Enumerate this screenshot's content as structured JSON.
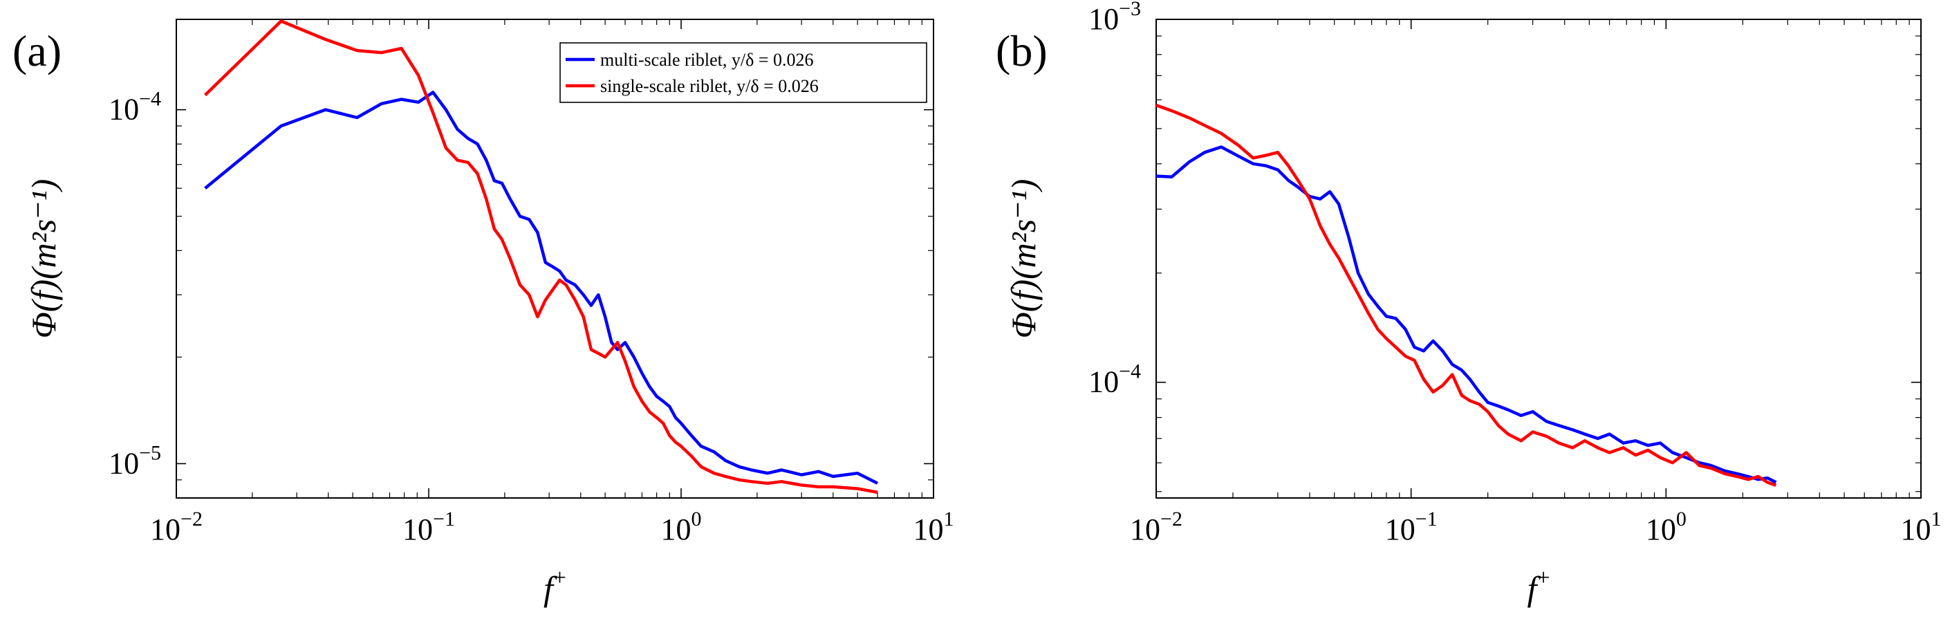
{
  "chart_data": [
    {
      "panel_label": "(a)",
      "type": "line",
      "xscale": "log",
      "yscale": "log",
      "xlim": [
        0.01,
        10
      ],
      "ylim": [
        8e-06,
        0.00018
      ],
      "xlabel": "f+",
      "ylabel": "Φ(f)(m²s⁻¹)",
      "x_ticks": [
        {
          "base": "10",
          "exp": "−2"
        },
        {
          "base": "10",
          "exp": "−1"
        },
        {
          "base": "10",
          "exp": "0"
        },
        {
          "base": "10",
          "exp": "1"
        }
      ],
      "y_ticks": [
        {
          "base": "10",
          "exp": "−5"
        },
        {
          "base": "10",
          "exp": "−4"
        }
      ],
      "legend": {
        "placement": "top-right",
        "entries": [
          "multi-scale riblet, y/δ = 0.026",
          "single-scale riblet, y/δ = 0.026"
        ]
      },
      "series": [
        {
          "name": "multi-scale riblet, y/δ = 0.026",
          "color": "#0000ff",
          "x": [
            0.013,
            0.026,
            0.039,
            0.052,
            0.065,
            0.078,
            0.091,
            0.104,
            0.117,
            0.13,
            0.143,
            0.156,
            0.169,
            0.182,
            0.195,
            0.21,
            0.23,
            0.25,
            0.27,
            0.29,
            0.31,
            0.33,
            0.35,
            0.38,
            0.41,
            0.44,
            0.47,
            0.5,
            0.53,
            0.56,
            0.6,
            0.65,
            0.7,
            0.75,
            0.8,
            0.85,
            0.9,
            0.95,
            1.0,
            1.1,
            1.2,
            1.35,
            1.5,
            1.7,
            1.9,
            2.2,
            2.5,
            3.0,
            3.5,
            4.0,
            5.0,
            6.0
          ],
          "y": [
            6e-05,
            9e-05,
            0.0001,
            9.5e-05,
            0.000104,
            0.000107,
            0.000105,
            0.000112,
            0.0001,
            8.8e-05,
            8.3e-05,
            8e-05,
            7.2e-05,
            6.3e-05,
            6.2e-05,
            5.6e-05,
            5e-05,
            4.9e-05,
            4.5e-05,
            3.7e-05,
            3.6e-05,
            3.5e-05,
            3.3e-05,
            3.2e-05,
            3e-05,
            2.8e-05,
            3e-05,
            2.6e-05,
            2.2e-05,
            2.1e-05,
            2.2e-05,
            2e-05,
            1.8e-05,
            1.65e-05,
            1.55e-05,
            1.5e-05,
            1.45e-05,
            1.35e-05,
            1.3e-05,
            1.2e-05,
            1.12e-05,
            1.08e-05,
            1.02e-05,
            9.8e-06,
            9.6e-06,
            9.4e-06,
            9.6e-06,
            9.3e-06,
            9.5e-06,
            9.2e-06,
            9.4e-06,
            8.8e-06
          ]
        },
        {
          "name": "single-scale riblet, y/δ = 0.026",
          "color": "#ff0000",
          "x": [
            0.013,
            0.026,
            0.039,
            0.052,
            0.065,
            0.078,
            0.091,
            0.104,
            0.117,
            0.13,
            0.143,
            0.156,
            0.169,
            0.182,
            0.195,
            0.21,
            0.23,
            0.25,
            0.27,
            0.29,
            0.31,
            0.33,
            0.35,
            0.38,
            0.41,
            0.44,
            0.47,
            0.5,
            0.53,
            0.56,
            0.6,
            0.65,
            0.7,
            0.75,
            0.8,
            0.85,
            0.9,
            0.95,
            1.0,
            1.1,
            1.2,
            1.35,
            1.5,
            1.7,
            1.9,
            2.2,
            2.5,
            3.0,
            3.5,
            4.0,
            5.0,
            6.0
          ],
          "y": [
            0.00011,
            0.000178,
            0.000158,
            0.000147,
            0.000145,
            0.000149,
            0.000125,
            9.8e-05,
            7.8e-05,
            7.2e-05,
            7.1e-05,
            6.6e-05,
            5.6e-05,
            4.6e-05,
            4.3e-05,
            3.8e-05,
            3.2e-05,
            3e-05,
            2.6e-05,
            2.9e-05,
            3.1e-05,
            3.3e-05,
            3.2e-05,
            2.9e-05,
            2.6e-05,
            2.1e-05,
            2.05e-05,
            2e-05,
            2.1e-05,
            2.2e-05,
            1.95e-05,
            1.65e-05,
            1.5e-05,
            1.4e-05,
            1.35e-05,
            1.3e-05,
            1.2e-05,
            1.15e-05,
            1.12e-05,
            1.05e-05,
            9.8e-06,
            9.4e-06,
            9.2e-06,
            9e-06,
            8.9e-06,
            8.8e-06,
            8.9e-06,
            8.7e-06,
            8.6e-06,
            8.6e-06,
            8.5e-06,
            8.3e-06
          ]
        }
      ]
    },
    {
      "panel_label": "(b)",
      "type": "line",
      "xscale": "log",
      "yscale": "log",
      "xlim": [
        0.01,
        10
      ],
      "ylim": [
        4.8e-05,
        0.001
      ],
      "xlabel": "f+",
      "ylabel": "Φ(f)(m²s⁻¹)",
      "x_ticks": [
        {
          "base": "10",
          "exp": "−2"
        },
        {
          "base": "10",
          "exp": "−1"
        },
        {
          "base": "10",
          "exp": "0"
        },
        {
          "base": "10",
          "exp": "1"
        }
      ],
      "y_ticks": [
        {
          "base": "10",
          "exp": "−4"
        },
        {
          "base": "10",
          "exp": "−3"
        }
      ],
      "series": [
        {
          "name": "multi-scale riblet",
          "color": "#0000ff",
          "x": [
            0.01,
            0.0115,
            0.0135,
            0.0155,
            0.018,
            0.021,
            0.024,
            0.027,
            0.03,
            0.033,
            0.036,
            0.04,
            0.044,
            0.048,
            0.052,
            0.057,
            0.062,
            0.068,
            0.074,
            0.08,
            0.087,
            0.095,
            0.103,
            0.112,
            0.122,
            0.133,
            0.145,
            0.158,
            0.17,
            0.185,
            0.2,
            0.22,
            0.24,
            0.27,
            0.3,
            0.34,
            0.38,
            0.43,
            0.48,
            0.54,
            0.6,
            0.68,
            0.76,
            0.85,
            0.95,
            1.06,
            1.2,
            1.35,
            1.5,
            1.7,
            1.9,
            2.1,
            2.3,
            2.5,
            2.7
          ],
          "y": [
            0.00037,
            0.000368,
            0.000405,
            0.00043,
            0.000445,
            0.00042,
            0.0004,
            0.000395,
            0.000385,
            0.00036,
            0.000345,
            0.000325,
            0.00032,
            0.000335,
            0.00031,
            0.00025,
            0.0002,
            0.000175,
            0.000162,
            0.000152,
            0.00015,
            0.00014,
            0.000125,
            0.000122,
            0.00013,
            0.000122,
            0.000112,
            0.000108,
            0.000102,
            9.4e-05,
            8.8e-05,
            8.6e-05,
            8.4e-05,
            8.1e-05,
            8.3e-05,
            7.8e-05,
            7.6e-05,
            7.4e-05,
            7.2e-05,
            7e-05,
            7.2e-05,
            6.8e-05,
            6.9e-05,
            6.7e-05,
            6.8e-05,
            6.4e-05,
            6.2e-05,
            6e-05,
            5.9e-05,
            5.7e-05,
            5.6e-05,
            5.5e-05,
            5.4e-05,
            5.45e-05,
            5.3e-05
          ]
        },
        {
          "name": "single-scale riblet",
          "color": "#ff0000",
          "x": [
            0.01,
            0.0115,
            0.0135,
            0.0155,
            0.018,
            0.021,
            0.024,
            0.027,
            0.03,
            0.033,
            0.036,
            0.04,
            0.044,
            0.048,
            0.052,
            0.057,
            0.062,
            0.068,
            0.074,
            0.08,
            0.087,
            0.095,
            0.103,
            0.112,
            0.122,
            0.133,
            0.145,
            0.158,
            0.17,
            0.185,
            0.2,
            0.22,
            0.24,
            0.27,
            0.3,
            0.34,
            0.38,
            0.43,
            0.48,
            0.54,
            0.6,
            0.68,
            0.76,
            0.85,
            0.95,
            1.06,
            1.2,
            1.35,
            1.5,
            1.7,
            1.9,
            2.1,
            2.3,
            2.5,
            2.7
          ],
          "y": [
            0.00058,
            0.00056,
            0.000535,
            0.00051,
            0.000485,
            0.00045,
            0.000415,
            0.000422,
            0.00043,
            0.000395,
            0.00036,
            0.00032,
            0.00027,
            0.00024,
            0.00022,
            0.000195,
            0.000175,
            0.000155,
            0.00014,
            0.000132,
            0.000125,
            0.000118,
            0.000115,
            0.000102,
            9.4e-05,
            9.8e-05,
            0.000105,
            9.2e-05,
            8.9e-05,
            8.7e-05,
            8.3e-05,
            7.6e-05,
            7.2e-05,
            6.9e-05,
            7.3e-05,
            7.1e-05,
            6.8e-05,
            6.6e-05,
            6.9e-05,
            6.6e-05,
            6.4e-05,
            6.6e-05,
            6.3e-05,
            6.5e-05,
            6.2e-05,
            6e-05,
            6.4e-05,
            5.9e-05,
            5.8e-05,
            5.6e-05,
            5.5e-05,
            5.4e-05,
            5.5e-05,
            5.3e-05,
            5.2e-05
          ]
        }
      ]
    }
  ]
}
